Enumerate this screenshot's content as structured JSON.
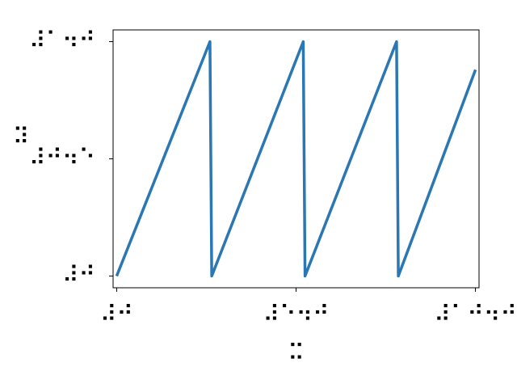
{
  "chart_data": {
    "type": "line",
    "title": "",
    "xlabel": "⠭",
    "ylabel": "⠽",
    "xlim": [
      -0.1,
      10.1
    ],
    "ylim": [
      -0.05,
      1.05
    ],
    "x_ticks": [
      {
        "value": 0,
        "label": "⠼⠚"
      },
      {
        "value": 5,
        "label": "⠼⠑⠲⠚"
      },
      {
        "value": 10,
        "label": "⠼⠁⠚⠲⠚"
      }
    ],
    "y_ticks": [
      {
        "value": 0,
        "label": "⠼⠚"
      },
      {
        "value": 0.5,
        "label": "⠼⠚⠲⠑"
      },
      {
        "value": 1,
        "label": "⠼⠁⠲⠚"
      }
    ],
    "grid": false,
    "legend": "none",
    "series": [
      {
        "color": "#2a77b4",
        "x": [
          0,
          2.6,
          2.65,
          5.2,
          5.25,
          7.8,
          7.85,
          10
        ],
        "y": [
          0,
          1,
          0,
          1,
          0,
          1,
          0,
          0.88
        ]
      }
    ]
  }
}
